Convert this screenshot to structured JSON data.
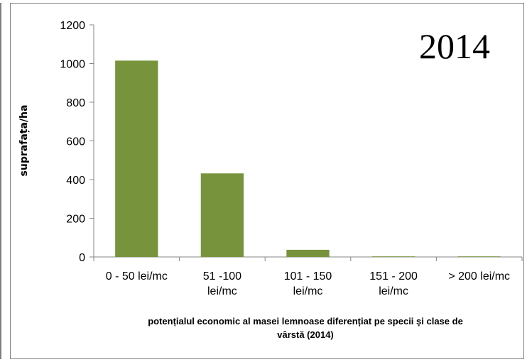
{
  "chart_data": {
    "type": "bar",
    "categories": [
      [
        "0 - 50 lei/mc"
      ],
      [
        "51 -100",
        "lei/mc"
      ],
      [
        "101 - 150",
        "lei/mc"
      ],
      [
        "151 - 200",
        "lei/mc"
      ],
      [
        "> 200 lei/mc"
      ]
    ],
    "values": [
      1015,
      432,
      37,
      3,
      3
    ],
    "title": "2014",
    "ylabel": "suprafața/ha",
    "xlabel": [
      "potențialul economic al masei lemnoase diferențiat pe specii și clase de",
      "vârstă (2014)"
    ],
    "ylim": [
      0,
      1200
    ],
    "yticks": [
      0,
      200,
      400,
      600,
      800,
      1000,
      1200
    ],
    "bar_color": "#77933c",
    "grid": false,
    "legend": "none"
  }
}
